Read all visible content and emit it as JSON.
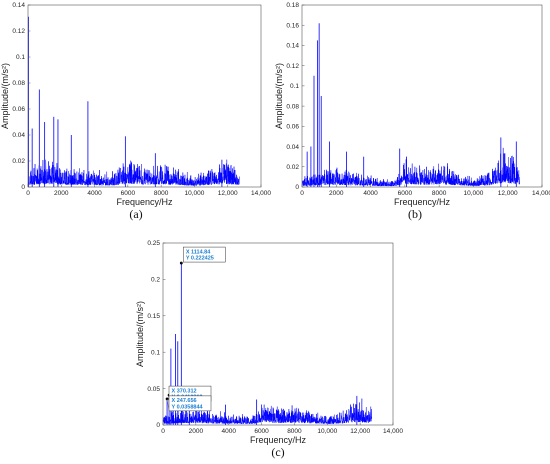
{
  "chart_data": [
    {
      "type": "line",
      "panel_label": "(a)",
      "xlabel": "Frequency/Hz",
      "ylabel": "Amplitude/(m/s²)",
      "xlim": [
        0,
        14000
      ],
      "ylim": [
        0,
        0.14
      ],
      "xticks": [
        0,
        2000,
        4000,
        6000,
        8000,
        10000,
        12000,
        14000
      ],
      "xtick_labels": [
        "0",
        "2000",
        "4000",
        "6000",
        "8000",
        "10,000",
        "12,000",
        "14,000"
      ],
      "yticks": [
        0,
        0.02,
        0.04,
        0.06,
        0.08,
        0.1,
        0.12,
        0.14
      ],
      "ytick_labels": [
        "0",
        "0.02",
        "0.04",
        "0.06",
        "0.08",
        "0.1",
        "0.12",
        "0.14"
      ],
      "color": "#0000ff",
      "peaks": [
        {
          "x": 30,
          "y": 0.131
        },
        {
          "x": 250,
          "y": 0.045
        },
        {
          "x": 680,
          "y": 0.075
        },
        {
          "x": 1000,
          "y": 0.05
        },
        {
          "x": 1550,
          "y": 0.054
        },
        {
          "x": 1800,
          "y": 0.052
        },
        {
          "x": 2600,
          "y": 0.04
        },
        {
          "x": 3600,
          "y": 0.066
        },
        {
          "x": 5850,
          "y": 0.039
        },
        {
          "x": 7650,
          "y": 0.026
        },
        {
          "x": 11650,
          "y": 0.021
        }
      ],
      "envelope": [
        [
          0,
          0.01
        ],
        [
          1000,
          0.014
        ],
        [
          2000,
          0.012
        ],
        [
          3000,
          0.01
        ],
        [
          4000,
          0.009
        ],
        [
          5000,
          0.007
        ],
        [
          6000,
          0.016
        ],
        [
          7000,
          0.012
        ],
        [
          8000,
          0.013
        ],
        [
          9000,
          0.01
        ],
        [
          10000,
          0.006
        ],
        [
          11000,
          0.011
        ],
        [
          11800,
          0.016
        ],
        [
          12700,
          0.01
        ]
      ]
    },
    {
      "type": "line",
      "panel_label": "(b)",
      "xlabel": "Frequency/Hz",
      "ylabel": "Amplitude/(m/s²)",
      "xlim": [
        0,
        14000
      ],
      "ylim": [
        0,
        0.18
      ],
      "xticks": [
        0,
        2000,
        4000,
        6000,
        8000,
        10000,
        12000,
        14000
      ],
      "xtick_labels": [
        "0",
        "2000",
        "4000",
        "6000",
        "8000",
        "10,000",
        "12,000",
        "14,000"
      ],
      "yticks": [
        0,
        0.02,
        0.04,
        0.06,
        0.08,
        0.1,
        0.12,
        0.14,
        0.16,
        0.18
      ],
      "ytick_labels": [
        "0",
        "0.02",
        "0.04",
        "0.06",
        "0.08",
        "0.1",
        "0.12",
        "0.14",
        "0.16",
        "0.18"
      ],
      "color": "#0000ff",
      "peaks": [
        {
          "x": 300,
          "y": 0.035
        },
        {
          "x": 520,
          "y": 0.04
        },
        {
          "x": 700,
          "y": 0.11
        },
        {
          "x": 900,
          "y": 0.145
        },
        {
          "x": 1000,
          "y": 0.162
        },
        {
          "x": 1120,
          "y": 0.09
        },
        {
          "x": 1600,
          "y": 0.045
        },
        {
          "x": 2600,
          "y": 0.035
        },
        {
          "x": 3600,
          "y": 0.03
        },
        {
          "x": 5700,
          "y": 0.038
        },
        {
          "x": 6100,
          "y": 0.03
        },
        {
          "x": 11600,
          "y": 0.049
        },
        {
          "x": 12500,
          "y": 0.045
        }
      ],
      "envelope": [
        [
          0,
          0.006
        ],
        [
          1500,
          0.015
        ],
        [
          2500,
          0.012
        ],
        [
          3500,
          0.01
        ],
        [
          4500,
          0.006
        ],
        [
          5500,
          0.006
        ],
        [
          6000,
          0.02
        ],
        [
          7000,
          0.014
        ],
        [
          8000,
          0.018
        ],
        [
          9000,
          0.012
        ],
        [
          10000,
          0.006
        ],
        [
          11000,
          0.012
        ],
        [
          11800,
          0.028
        ],
        [
          12700,
          0.018
        ]
      ]
    },
    {
      "type": "line",
      "panel_label": "(c)",
      "xlabel": "Frequency/Hz",
      "ylabel": "Amplitude/(m/s²)",
      "xlim": [
        0,
        14000
      ],
      "ylim": [
        0,
        0.25
      ],
      "xticks": [
        0,
        2000,
        4000,
        6000,
        8000,
        10000,
        12000,
        14000
      ],
      "xtick_labels": [
        "0",
        "2000",
        "4000",
        "6000",
        "8000",
        "10,000",
        "12,000",
        "14,000"
      ],
      "yticks": [
        0,
        0.05,
        0.1,
        0.15,
        0.2,
        0.25
      ],
      "ytick_labels": [
        "0",
        "0.05",
        "0.1",
        "0.15",
        "0.2",
        "0.25"
      ],
      "color": "#0000ff",
      "peaks": [
        {
          "x": 247.656,
          "y": 0.0358844
        },
        {
          "x": 370.312,
          "y": 0.0410819
        },
        {
          "x": 480,
          "y": 0.105
        },
        {
          "x": 620,
          "y": 0.045
        },
        {
          "x": 760,
          "y": 0.125
        },
        {
          "x": 900,
          "y": 0.115
        },
        {
          "x": 1114.84,
          "y": 0.222425
        },
        {
          "x": 1600,
          "y": 0.03
        },
        {
          "x": 3800,
          "y": 0.028
        },
        {
          "x": 5700,
          "y": 0.035
        },
        {
          "x": 11800,
          "y": 0.04
        }
      ],
      "envelope": [
        [
          0,
          0.01
        ],
        [
          1500,
          0.018
        ],
        [
          2500,
          0.016
        ],
        [
          3500,
          0.012
        ],
        [
          4500,
          0.01
        ],
        [
          5500,
          0.01
        ],
        [
          6000,
          0.026
        ],
        [
          7000,
          0.018
        ],
        [
          8000,
          0.02
        ],
        [
          9000,
          0.015
        ],
        [
          10000,
          0.008
        ],
        [
          11000,
          0.015
        ],
        [
          11800,
          0.028
        ],
        [
          12700,
          0.018
        ]
      ],
      "datatips": [
        {
          "x_label": "X 1114.84",
          "y_label": "Y 0.222425",
          "x": 1114.84,
          "y": 0.222425
        },
        {
          "x_label": "X 370.312",
          "y_label": "Y 0.0410819",
          "x": 370.312,
          "y": 0.0410819
        },
        {
          "x_label": "X 247.656",
          "y_label": "Y 0.0358844",
          "x": 247.656,
          "y": 0.0358844
        }
      ]
    }
  ]
}
